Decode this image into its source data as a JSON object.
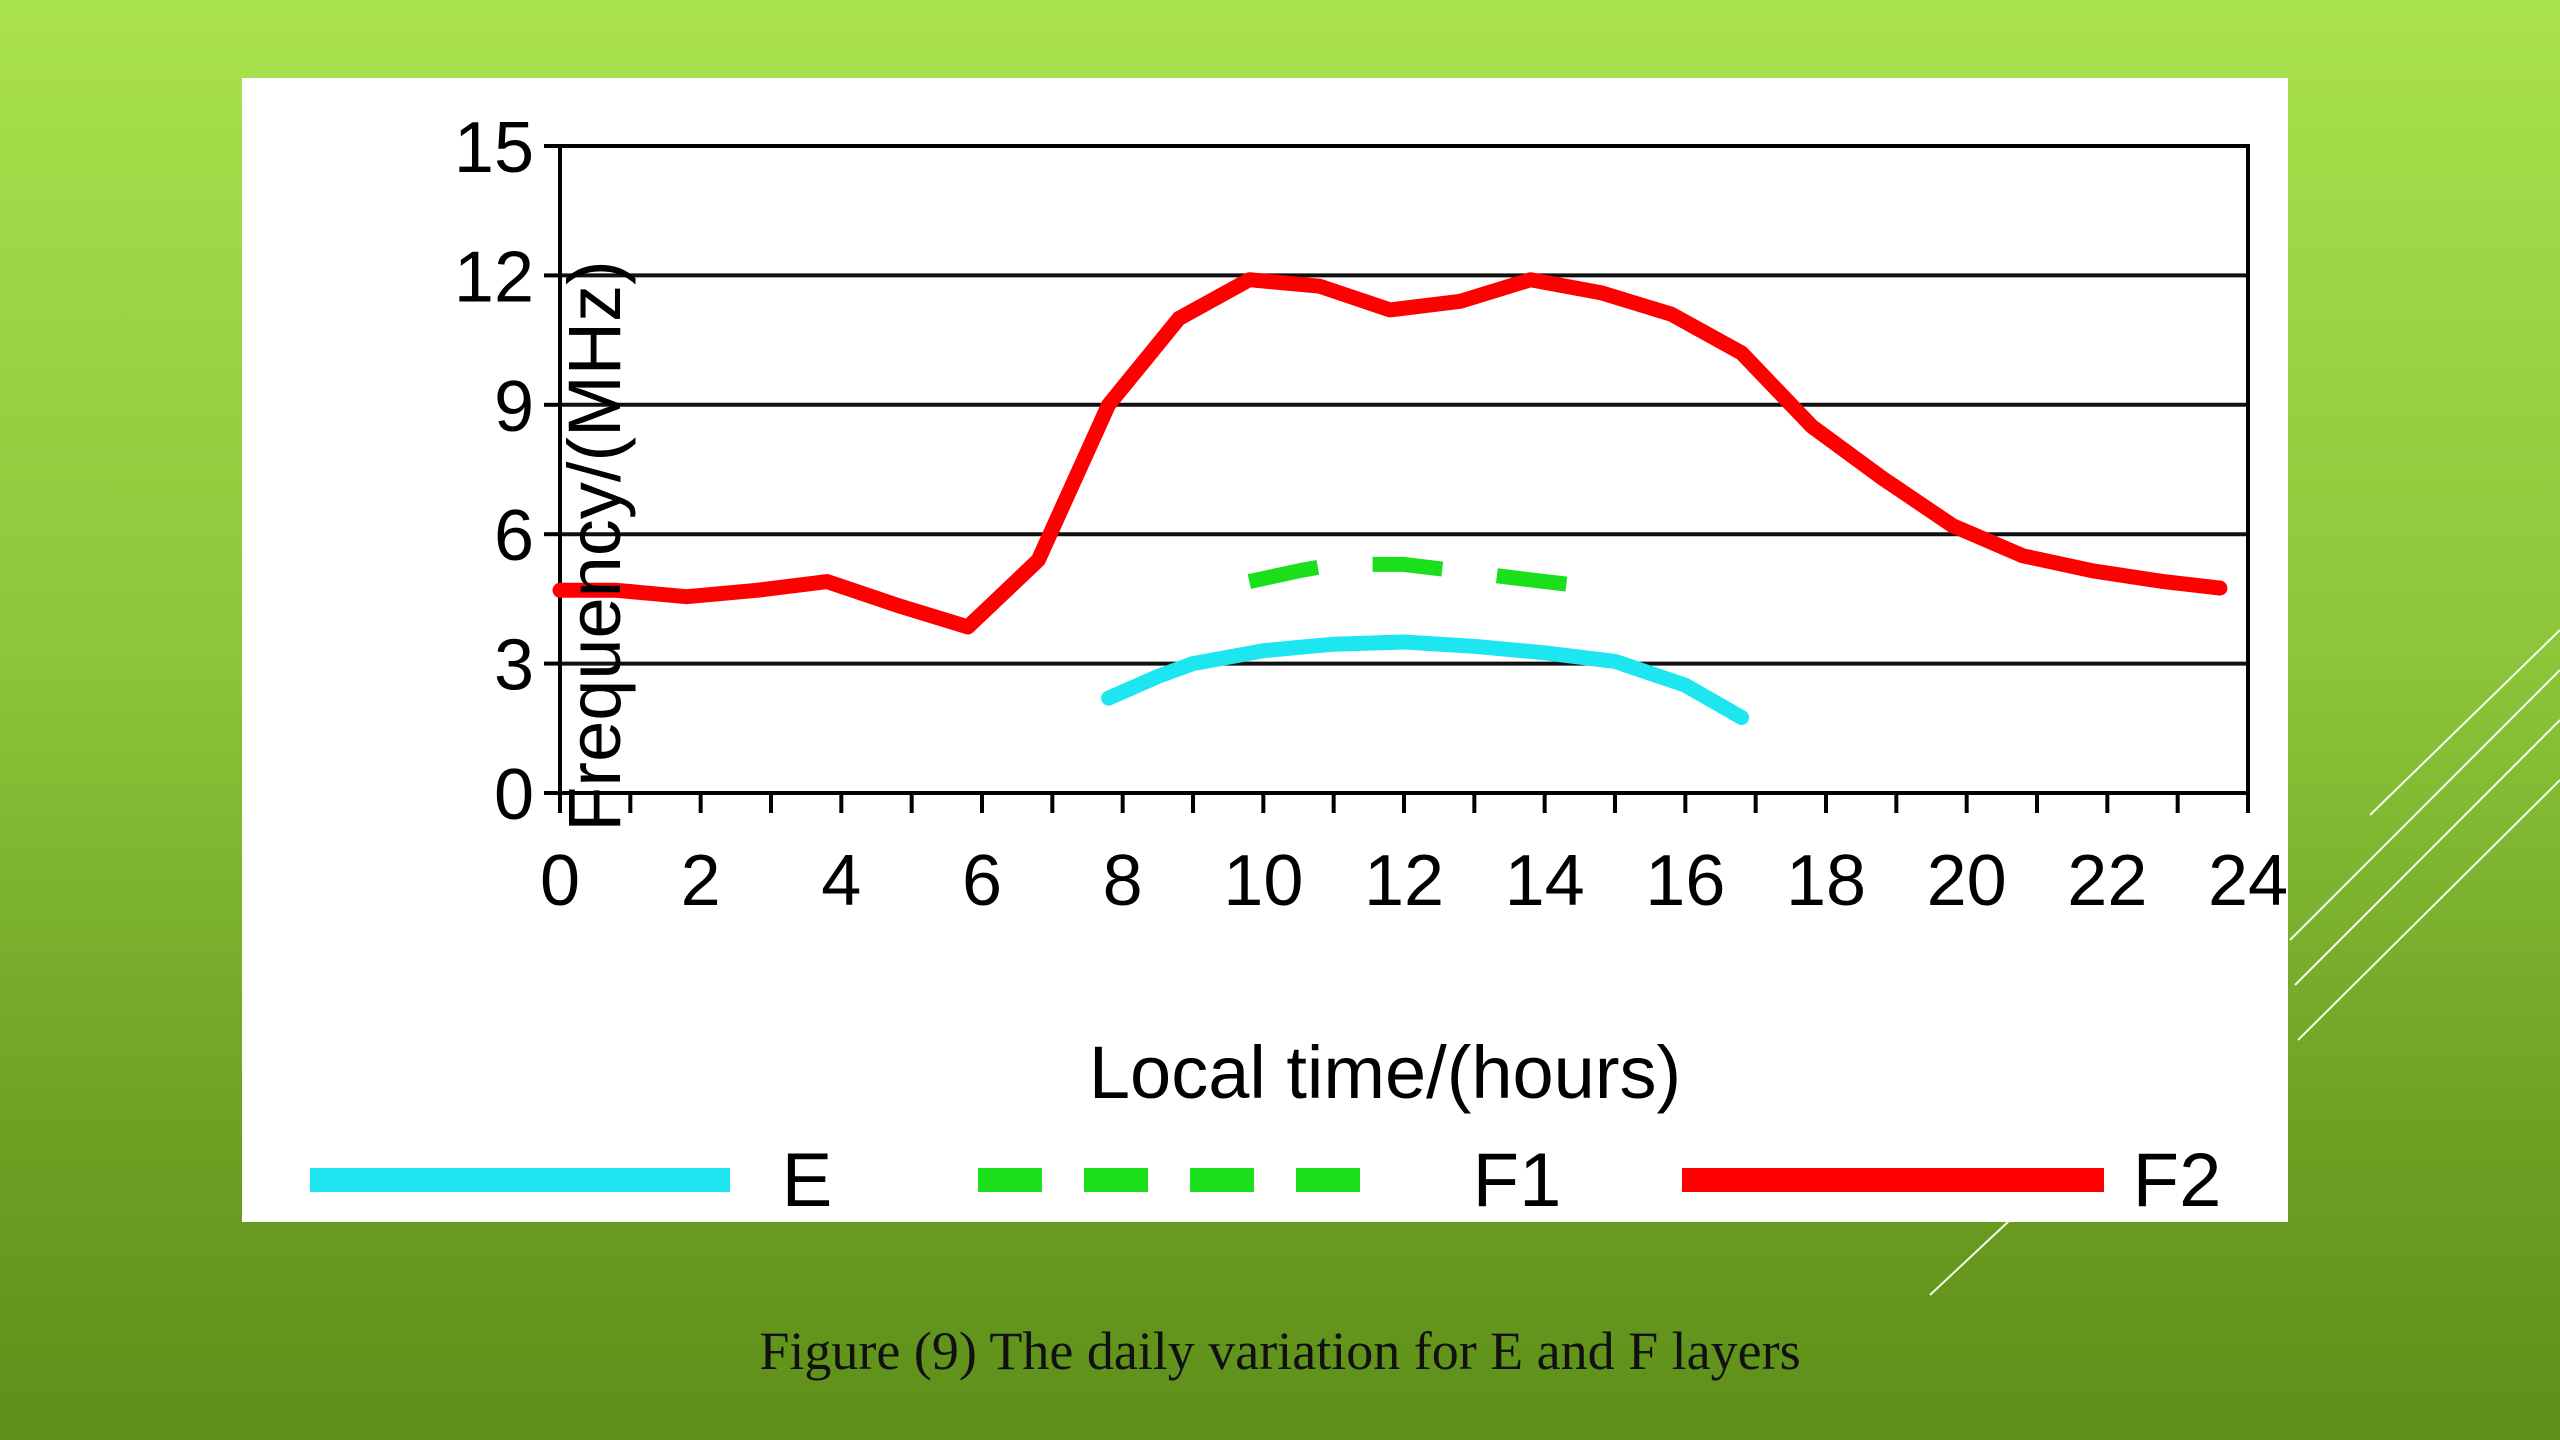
{
  "caption": "Figure (9) The daily variation for E and F layers",
  "chart_data": {
    "type": "line",
    "title": "",
    "xlabel": "Local time/(hours)",
    "ylabel": "Frequency/(MHz)",
    "xlim": [
      0,
      24
    ],
    "ylim": [
      0,
      15
    ],
    "xticks": [
      0,
      2,
      4,
      6,
      8,
      10,
      12,
      14,
      16,
      18,
      20,
      22,
      24
    ],
    "yticks": [
      0,
      3,
      6,
      9,
      12,
      15
    ],
    "grid": "horizontal",
    "legend_position": "bottom",
    "series": [
      {
        "name": "E",
        "color": "#1ee6f0",
        "style": "solid",
        "x": [
          7.8,
          8.5,
          9,
          10,
          11,
          12,
          13,
          14,
          15,
          16,
          16.8
        ],
        "y": [
          2.2,
          2.7,
          3.0,
          3.3,
          3.45,
          3.5,
          3.4,
          3.25,
          3.05,
          2.5,
          1.75
        ]
      },
      {
        "name": "F1",
        "color": "#1adf1a",
        "style": "dashed",
        "x": [
          9.8,
          10.5,
          11,
          12,
          13,
          14,
          14.8
        ],
        "y": [
          4.9,
          5.15,
          5.3,
          5.3,
          5.1,
          4.9,
          4.75
        ]
      },
      {
        "name": "F2",
        "color": "#ff0000",
        "style": "solid",
        "x": [
          0,
          0.8,
          1.8,
          2.8,
          3.8,
          4.8,
          5.8,
          6.8,
          7.8,
          8.8,
          9.8,
          10.8,
          11.8,
          12.8,
          13.8,
          14.8,
          15.8,
          16.8,
          17.8,
          18.8,
          19.8,
          20.8,
          21.8,
          22.8,
          23.6
        ],
        "y": [
          4.7,
          4.7,
          4.55,
          4.7,
          4.9,
          4.35,
          3.85,
          5.4,
          9.0,
          11.0,
          11.9,
          11.75,
          11.2,
          11.4,
          11.9,
          11.6,
          11.1,
          10.2,
          8.5,
          7.3,
          6.2,
          5.5,
          5.15,
          4.9,
          4.75
        ]
      }
    ]
  }
}
